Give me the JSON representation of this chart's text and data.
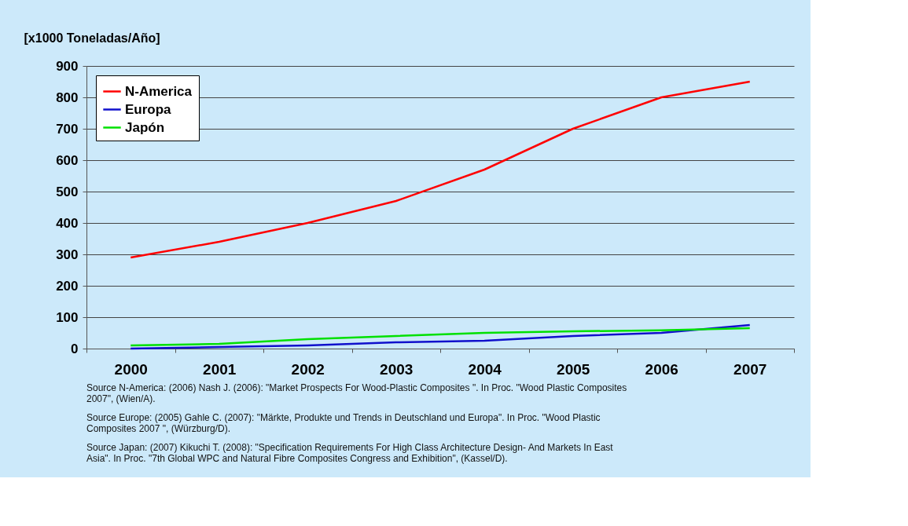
{
  "chart_data": {
    "type": "line",
    "ylabel": "[x1000 Toneladas/Año]",
    "categories": [
      "2000",
      "2001",
      "2002",
      "2003",
      "2004",
      "2005",
      "2006",
      "2007"
    ],
    "series": [
      {
        "name": "N-America",
        "color": "#ff0000",
        "values": [
          290,
          340,
          400,
          470,
          570,
          700,
          800,
          850
        ]
      },
      {
        "name": "Europa",
        "color": "#1010cc",
        "values": [
          0,
          5,
          10,
          20,
          25,
          40,
          50,
          75
        ]
      },
      {
        "name": "Japón",
        "color": "#00e000",
        "values": [
          10,
          15,
          30,
          40,
          50,
          55,
          58,
          65
        ]
      }
    ],
    "ylim": [
      0,
      900
    ],
    "yticks": [
      0,
      100,
      200,
      300,
      400,
      500,
      600,
      700,
      800,
      900
    ],
    "grid": "y",
    "legend": "top left",
    "marker": "none",
    "line_style": "solid",
    "annotations": [
      "Source N-America: (2006) Nash J. (2006): \"Market Prospects For Wood-Plastic Composites \". In Proc. \"Wood Plastic Composites 2007\", (Wien/A).",
      "Source Europe: (2005) Gahle C. (2007): \"Märkte, Produkte und Trends in Deutschland und Europa\". In Proc. \"Wood Plastic Composites 2007 \", (Würzburg/D).",
      "Source Japan: (2007) Kikuchi T. (2008): \"Specification Requirements For High Class Architecture Design- And Markets In East Asia\". In Proc. \"7th Global WPC and Natural Fibre Composites Congress and Exhibition\", (Kassel/D)."
    ]
  }
}
